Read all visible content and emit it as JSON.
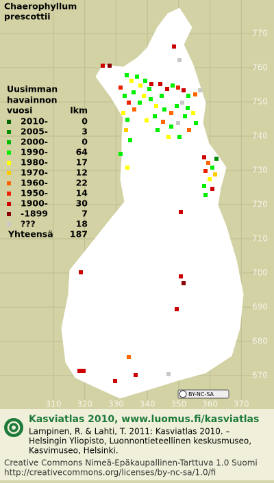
{
  "title": [
    "Chaerophyllum",
    "prescottii"
  ],
  "legend": {
    "header": [
      "Uusimman",
      "havainnon",
      "vuosi"
    ],
    "count_header": "lkm",
    "rows": [
      {
        "label": "2010-",
        "count": "0",
        "color": "#006400"
      },
      {
        "label": "2005-",
        "count": "3",
        "color": "#008c00"
      },
      {
        "label": "2000-",
        "count": "0",
        "color": "#00bb00"
      },
      {
        "label": "1990-",
        "count": "64",
        "color": "#00ee00"
      },
      {
        "label": "1980-",
        "count": "17",
        "color": "#ffff00"
      },
      {
        "label": "1970-",
        "count": "12",
        "color": "#ffcc00"
      },
      {
        "label": "1960-",
        "count": "22",
        "color": "#ff6600"
      },
      {
        "label": "1950-",
        "count": "14",
        "color": "#ee2200"
      },
      {
        "label": "1900-",
        "count": "30",
        "color": "#cc0000"
      },
      {
        "label": "-1899",
        "count": "7",
        "color": "#8b0000"
      },
      {
        "label": "???",
        "count": "18",
        "color": "#c8c8c8"
      }
    ],
    "total_label": "Yhteensä",
    "total": "187"
  },
  "grid": {
    "xticks": [
      310,
      320,
      330,
      340,
      350,
      360,
      370
    ],
    "yticks": [
      770,
      760,
      750,
      740,
      730,
      720,
      710,
      700,
      690,
      680,
      670
    ]
  },
  "license_badge": "BY-NC-SA",
  "footer": {
    "heading": "Kasviatlas 2010, www.luomus.fi/kasviatlas",
    "citation": [
      "Lampinen, R. & Lahti, T. 2011: Kasviatlas 2010. –",
      "Helsingin Yliopisto, Luonnontieteellinen keskusmuseo,",
      "Kasvimuseo, Helsinki."
    ],
    "license": [
      "Creative Commons Nimeä-Epäkaupallinen-Tarttuva 1.0 Suomi",
      "http://creativecommons.org/licenses/by-nc-sa/1.0/fi"
    ]
  }
}
